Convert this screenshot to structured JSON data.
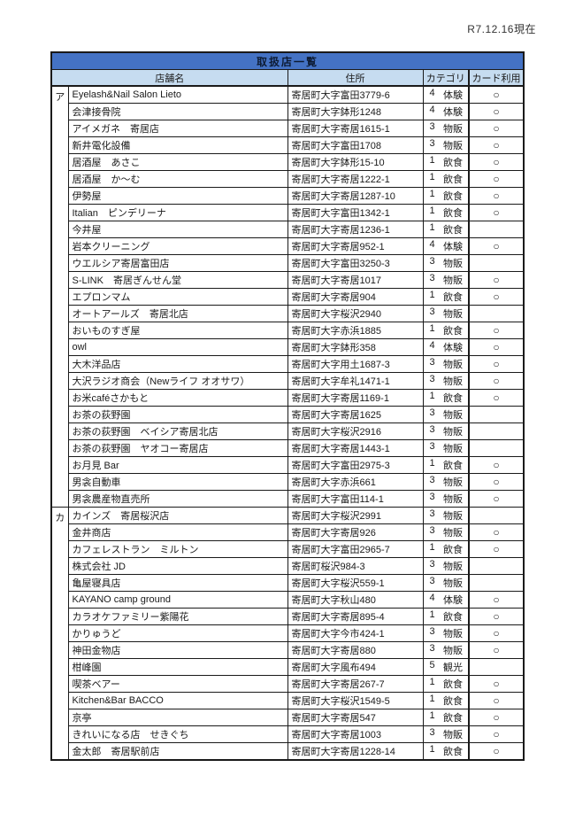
{
  "meta": {
    "date_note": "R7.12.16現在"
  },
  "colors": {
    "title_bg": "#4472C4",
    "title_fg": "#0d1b33",
    "header_bg": "#C6DCF0",
    "border": "#1a1a1a"
  },
  "table": {
    "title": "取扱店一覧",
    "columns": {
      "name": "店舗名",
      "address": "住所",
      "category": "カテゴリ",
      "card": "カード利用"
    },
    "card_mark": "○",
    "groups": [
      {
        "index": "ア",
        "rows": [
          {
            "name": "Eyelash&Nail Salon Lieto",
            "address": "寄居町大字富田3779-6",
            "category_no": "4",
            "category": "体験",
            "card": "○"
          },
          {
            "name": "会津接骨院",
            "address": "寄居町大字鉢形1248",
            "category_no": "4",
            "category": "体験",
            "card": "○"
          },
          {
            "name": "アイメガネ　寄居店",
            "address": "寄居町大字寄居1615-1",
            "category_no": "3",
            "category": "物販",
            "card": "○"
          },
          {
            "name": "新井電化設備",
            "address": "寄居町大字富田1708",
            "category_no": "3",
            "category": "物販",
            "card": "○"
          },
          {
            "name": "居酒屋　あさこ",
            "address": "寄居町大字鉢形15-10",
            "category_no": "1",
            "category": "飲食",
            "card": "○"
          },
          {
            "name": "居酒屋　か～む",
            "address": "寄居町大字寄居1222-1",
            "category_no": "1",
            "category": "飲食",
            "card": "○"
          },
          {
            "name": "伊勢屋",
            "address": "寄居町大字寄居1287-10",
            "category_no": "1",
            "category": "飲食",
            "card": "○"
          },
          {
            "name": "Italian　ピンデリーナ",
            "address": "寄居町大字富田1342-1",
            "category_no": "1",
            "category": "飲食",
            "card": "○"
          },
          {
            "name": "今井屋",
            "address": "寄居町大字寄居1236-1",
            "category_no": "1",
            "category": "飲食",
            "card": ""
          },
          {
            "name": "岩本クリーニング",
            "address": "寄居町大字寄居952-1",
            "category_no": "4",
            "category": "体験",
            "card": "○"
          },
          {
            "name": "ウエルシア寄居富田店",
            "address": "寄居町大字富田3250-3",
            "category_no": "3",
            "category": "物販",
            "card": ""
          },
          {
            "name": "S-LINK　寄居ぎんせん堂",
            "address": "寄居町大字寄居1017",
            "category_no": "3",
            "category": "物販",
            "card": "○"
          },
          {
            "name": "エプロンマム",
            "address": "寄居町大字寄居904",
            "category_no": "1",
            "category": "飲食",
            "card": "○"
          },
          {
            "name": "オートアールズ　寄居北店",
            "address": "寄居町大字桜沢2940",
            "category_no": "3",
            "category": "物販",
            "card": ""
          },
          {
            "name": "おいものすぎ屋",
            "address": "寄居町大字赤浜1885",
            "category_no": "1",
            "category": "飲食",
            "card": "○"
          },
          {
            "name": "owl",
            "address": "寄居町大字鉢形358",
            "category_no": "4",
            "category": "体験",
            "card": "○"
          },
          {
            "name": "大木洋品店",
            "address": "寄居町大字用土1687-3",
            "category_no": "3",
            "category": "物販",
            "card": "○"
          },
          {
            "name": "大沢ラジオ商会（Newライフ オオサワ）",
            "address": "寄居町大字牟礼1471-1",
            "category_no": "3",
            "category": "物販",
            "card": "○"
          },
          {
            "name": "お米caféさかもと",
            "address": "寄居町大字寄居1169-1",
            "category_no": "1",
            "category": "飲食",
            "card": "○"
          },
          {
            "name": "お茶の荻野園",
            "address": "寄居町大字寄居1625",
            "category_no": "3",
            "category": "物販",
            "card": ""
          },
          {
            "name": "お茶の荻野園　ベイシア寄居北店",
            "address": "寄居町大字桜沢2916",
            "category_no": "3",
            "category": "物販",
            "card": ""
          },
          {
            "name": "お茶の荻野園　ヤオコー寄居店",
            "address": "寄居町大字寄居1443-1",
            "category_no": "3",
            "category": "物販",
            "card": ""
          },
          {
            "name": "お月見 Bar",
            "address": "寄居町大字富田2975-3",
            "category_no": "1",
            "category": "飲食",
            "card": "○"
          },
          {
            "name": "男衾自動車",
            "address": "寄居町大字赤浜661",
            "category_no": "3",
            "category": "物販",
            "card": "○"
          },
          {
            "name": "男衾農産物直売所",
            "address": "寄居町大字富田114-1",
            "category_no": "3",
            "category": "物販",
            "card": "○"
          }
        ]
      },
      {
        "index": "カ",
        "rows": [
          {
            "name": "カインズ　寄居桜沢店",
            "address": "寄居町大字桜沢2991",
            "category_no": "3",
            "category": "物販",
            "card": ""
          },
          {
            "name": "金井商店",
            "address": "寄居町大字寄居926",
            "category_no": "3",
            "category": "物販",
            "card": "○"
          },
          {
            "name": "カフェレストラン　ミルトン",
            "address": "寄居町大字富田2965-7",
            "category_no": "1",
            "category": "飲食",
            "card": "○"
          },
          {
            "name": "株式会社 JD",
            "address": "寄居町桜沢984-3",
            "category_no": "3",
            "category": "物販",
            "card": ""
          },
          {
            "name": "亀屋寝具店",
            "address": "寄居町大字桜沢559-1",
            "category_no": "3",
            "category": "物販",
            "card": ""
          },
          {
            "name": "KAYANO camp ground",
            "address": "寄居町大字秋山480",
            "category_no": "4",
            "category": "体験",
            "card": "○"
          },
          {
            "name": "カラオケファミリー紫陽花",
            "address": "寄居町大字寄居895-4",
            "category_no": "1",
            "category": "飲食",
            "card": "○"
          },
          {
            "name": "かりゅうど",
            "address": "寄居町大字今市424-1",
            "category_no": "3",
            "category": "物販",
            "card": "○"
          },
          {
            "name": "神田金物店",
            "address": "寄居町大字寄居880",
            "category_no": "3",
            "category": "物販",
            "card": "○"
          },
          {
            "name": "柑峰園",
            "address": "寄居町大字風布494",
            "category_no": "5",
            "category": "観光",
            "card": ""
          },
          {
            "name": "喫茶ベアー",
            "address": "寄居町大字寄居267-7",
            "category_no": "1",
            "category": "飲食",
            "card": "○"
          },
          {
            "name": "Kitchen&Bar BACCO",
            "address": "寄居町大字桜沢1549-5",
            "category_no": "1",
            "category": "飲食",
            "card": "○"
          },
          {
            "name": "京亭",
            "address": "寄居町大字寄居547",
            "category_no": "1",
            "category": "飲食",
            "card": "○"
          },
          {
            "name": "きれいになる店　せきぐち",
            "address": "寄居町大字寄居1003",
            "category_no": "3",
            "category": "物販",
            "card": "○"
          },
          {
            "name": "金太郎　寄居駅前店",
            "address": "寄居町大字寄居1228-14",
            "category_no": "1",
            "category": "飲食",
            "card": "○"
          }
        ]
      }
    ]
  }
}
